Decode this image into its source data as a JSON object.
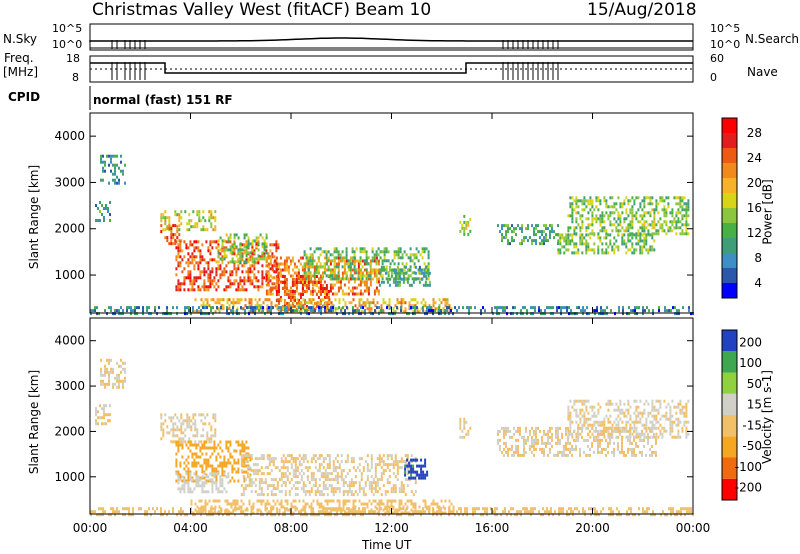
{
  "header": {
    "station": "Christmas Valley West (fitACF)",
    "beam": "Beam 10",
    "date": "15/Aug/2018"
  },
  "top_panel": {
    "nsky_label": "N.Sky",
    "nsearch_label": "N.Search",
    "freq_label_1": "Freq.",
    "freq_label_2": "[MHz]",
    "nave_label": "Nave",
    "cpid_label": "CPID",
    "cpid_value": "normal (fast) 151 RF",
    "nsky_ticks": [
      "10^5",
      "10^0"
    ],
    "nsearch_ticks": [
      "10^5",
      "10^0"
    ],
    "freq_ticks": [
      "18",
      "8"
    ],
    "nave_ticks": [
      "60",
      "0"
    ]
  },
  "chart_data": [
    {
      "type": "heatmap",
      "panel": "power",
      "ylabel": "Slant Range [km]",
      "colorbar_label": "Power [dB]",
      "colorbar_ticks": [
        "28",
        "24",
        "20",
        "16",
        "12",
        "8",
        "4"
      ],
      "colormap": [
        "#0000ff",
        "#2b57a8",
        "#3e8fc4",
        "#3f9e78",
        "#49b046",
        "#8cc63f",
        "#d7d419",
        "#f6b32a",
        "#f08a1c",
        "#ec5a14",
        "#e21d1d",
        "#ff0000"
      ],
      "ytick_labels": [
        "1000",
        "2000",
        "3000",
        "4000"
      ],
      "ylim": [
        180,
        4500
      ],
      "xlim": [
        0,
        24
      ],
      "regions": [
        {
          "t0": 0.2,
          "t1": 0.8,
          "r0": 2150,
          "r1": 2600,
          "v": 9
        },
        {
          "t0": 0.4,
          "t1": 1.4,
          "r0": 3000,
          "r1": 3600,
          "v": 8
        },
        {
          "t0": 2.8,
          "t1": 5.0,
          "r0": 2000,
          "r1": 2400,
          "v": 17
        },
        {
          "t0": 2.8,
          "t1": 3.6,
          "r0": 1700,
          "r1": 2100,
          "v": 25
        },
        {
          "t0": 3.4,
          "t1": 7.5,
          "r0": 700,
          "r1": 1750,
          "v": 26
        },
        {
          "t0": 5.0,
          "t1": 7.0,
          "r0": 1300,
          "r1": 1900,
          "v": 14
        },
        {
          "t0": 7.0,
          "t1": 11.5,
          "r0": 600,
          "r1": 1400,
          "v": 23
        },
        {
          "t0": 7.4,
          "t1": 9.5,
          "r0": 250,
          "r1": 1000,
          "v": 26
        },
        {
          "t0": 8.5,
          "t1": 13.5,
          "r0": 900,
          "r1": 1600,
          "v": 13
        },
        {
          "t0": 11.5,
          "t1": 13.5,
          "r0": 750,
          "r1": 1200,
          "v": 10
        },
        {
          "t0": 4.0,
          "t1": 14.5,
          "r0": 200,
          "r1": 500,
          "v": 20
        },
        {
          "t0": 14.7,
          "t1": 15.1,
          "r0": 1900,
          "r1": 2300,
          "v": 15
        },
        {
          "t0": 16.2,
          "t1": 18.6,
          "r0": 1700,
          "r1": 2100,
          "v": 10
        },
        {
          "t0": 18.6,
          "t1": 22.5,
          "r0": 1500,
          "r1": 1900,
          "v": 13
        },
        {
          "t0": 19.0,
          "t1": 23.8,
          "r0": 1900,
          "r1": 2700,
          "v": 14
        },
        {
          "t0": 0.0,
          "t1": 24.0,
          "r0": 180,
          "r1": 330,
          "v": 7
        }
      ]
    },
    {
      "type": "heatmap",
      "panel": "velocity",
      "ylabel": "Slant Range [km]",
      "colorbar_label": "Velocity [m s-1]",
      "colorbar_ticks": [
        "200",
        "100",
        "50",
        "15",
        "-15",
        "-50",
        "-100",
        "-200"
      ],
      "colormap": [
        "#ff0000",
        "#f06a10",
        "#f5a623",
        "#f2c069",
        "#d0d0c8",
        "#8fd13f",
        "#3fa651",
        "#2242c0"
      ],
      "ytick_labels": [
        "1000",
        "2000",
        "3000",
        "4000"
      ],
      "ylim": [
        180,
        4500
      ],
      "xlim": [
        0,
        24
      ],
      "xtick_labels": [
        "00:00",
        "04:00",
        "08:00",
        "12:00",
        "16:00",
        "20:00",
        "00:00"
      ],
      "xlabel": "Time UT",
      "regions": [
        {
          "t0": 0.2,
          "t1": 0.8,
          "r0": 2150,
          "r1": 2600,
          "v": 0
        },
        {
          "t0": 0.4,
          "t1": 1.4,
          "r0": 3000,
          "r1": 3600,
          "v": 0
        },
        {
          "t0": 2.8,
          "t1": 5.0,
          "r0": 1800,
          "r1": 2400,
          "v": 0
        },
        {
          "t0": 3.4,
          "t1": 6.4,
          "r0": 900,
          "r1": 1800,
          "v": -80
        },
        {
          "t0": 3.4,
          "t1": 5.5,
          "r0": 700,
          "r1": 1100,
          "v": 40
        },
        {
          "t0": 6.0,
          "t1": 13.0,
          "r0": 600,
          "r1": 1500,
          "v": 0
        },
        {
          "t0": 12.5,
          "t1": 13.4,
          "r0": 1000,
          "r1": 1400,
          "v": 200
        },
        {
          "t0": 4.0,
          "t1": 14.5,
          "r0": 200,
          "r1": 500,
          "v": -30
        },
        {
          "t0": 14.7,
          "t1": 15.1,
          "r0": 1900,
          "r1": 2300,
          "v": 0
        },
        {
          "t0": 16.2,
          "t1": 22.5,
          "r0": 1500,
          "r1": 2100,
          "v": 0
        },
        {
          "t0": 19.0,
          "t1": 23.8,
          "r0": 1900,
          "r1": 2700,
          "v": 0
        },
        {
          "t0": 0.0,
          "t1": 24.0,
          "r0": 180,
          "r1": 330,
          "v": -20
        }
      ]
    }
  ]
}
